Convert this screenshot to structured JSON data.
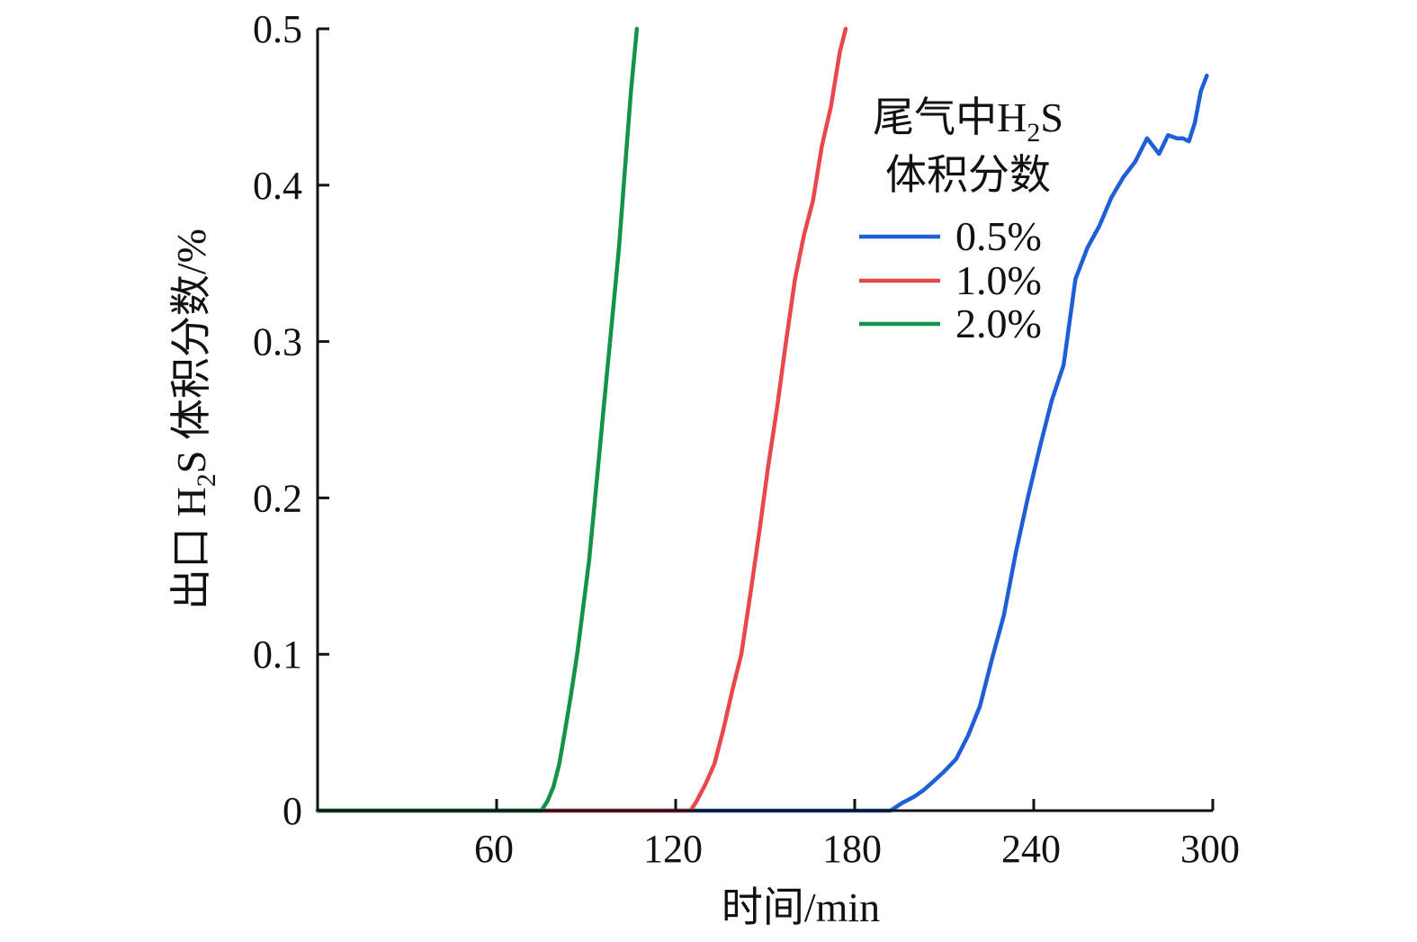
{
  "chart_data": {
    "type": "line",
    "title": "",
    "xlabel": "时间/min",
    "ylabel": {
      "part1": "出口 H",
      "sub": "2",
      "part2": "S 体积分数/%"
    },
    "xlim": [
      0,
      300
    ],
    "ylim": [
      0,
      0.5
    ],
    "x_ticks": [
      60,
      120,
      180,
      240,
      300
    ],
    "x_tick_labels": [
      "60",
      "120",
      "180",
      "240",
      "300"
    ],
    "y_ticks": [
      0,
      0.1,
      0.2,
      0.3,
      0.4,
      0.5
    ],
    "y_tick_labels": [
      "0",
      "0.1",
      "0.2",
      "0.3",
      "0.4",
      "0.5"
    ],
    "grid": false,
    "legend": {
      "placement": "top-right",
      "title_line1": {
        "part1": "尾气中H",
        "sub": "2",
        "part2": "S"
      },
      "title_line2": "体积分数"
    },
    "series": [
      {
        "name": "0.5%",
        "color": "#1f5fd6",
        "x": [
          0,
          192,
          196,
          200,
          203,
          206,
          210,
          214,
          218,
          222,
          226,
          230,
          234,
          238,
          242,
          246,
          250,
          254,
          258,
          262,
          266,
          270,
          274,
          278,
          282,
          285,
          288,
          290,
          292,
          294,
          296,
          298
        ],
        "y": [
          0,
          0,
          0.005,
          0.009,
          0.013,
          0.018,
          0.025,
          0.033,
          0.048,
          0.067,
          0.097,
          0.125,
          0.165,
          0.2,
          0.232,
          0.262,
          0.285,
          0.34,
          0.36,
          0.374,
          0.392,
          0.405,
          0.415,
          0.43,
          0.42,
          0.432,
          0.43,
          0.43,
          0.428,
          0.44,
          0.46,
          0.47
        ]
      },
      {
        "name": "1.0%",
        "color": "#e8474c",
        "x": [
          0,
          125,
          127,
          130,
          133,
          136,
          139,
          142,
          145,
          148,
          151,
          154,
          157,
          160,
          163,
          166,
          169,
          172,
          175,
          177
        ],
        "y": [
          0,
          0,
          0.006,
          0.017,
          0.03,
          0.052,
          0.077,
          0.1,
          0.138,
          0.178,
          0.22,
          0.258,
          0.3,
          0.34,
          0.368,
          0.39,
          0.425,
          0.45,
          0.485,
          0.5
        ]
      },
      {
        "name": "2.0%",
        "color": "#13924a",
        "x": [
          0,
          75,
          77,
          79,
          81,
          83,
          85,
          87,
          89,
          91,
          93,
          95,
          97,
          99,
          101,
          103,
          105,
          107
        ],
        "y": [
          0,
          0,
          0.006,
          0.015,
          0.03,
          0.052,
          0.075,
          0.1,
          0.13,
          0.16,
          0.2,
          0.24,
          0.28,
          0.32,
          0.36,
          0.41,
          0.46,
          0.5
        ]
      }
    ]
  }
}
